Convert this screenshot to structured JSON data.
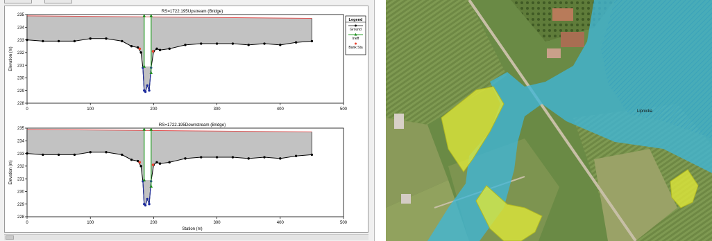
{
  "colors": {
    "ground_fill": "#c2c2c2",
    "ground_line": "#000000",
    "ground_marker": "#000000",
    "ineff_line": "#2ea12e",
    "ineff_marker": "#1a8a1a",
    "bank_marker": "#e8412c",
    "wse_line": "#e05050",
    "channel_line": "#1b2a9c",
    "map_flood": "#3fb6d9",
    "map_hazard": "#dde63a",
    "map_fields": "#6f8a47"
  },
  "legend": {
    "title": "Legend",
    "items": [
      {
        "label": "Ground",
        "symbol": "circle-line",
        "color": "#000000"
      },
      {
        "label": "Ineff",
        "symbol": "triangle-line",
        "color": "#2ea12e"
      },
      {
        "label": "Bank Sta",
        "symbol": "dot",
        "color": "#e8412c"
      }
    ]
  },
  "map": {
    "label": "Lipnicka"
  },
  "chart_data": [
    {
      "type": "area",
      "title": "RS=1722.195Upstream  (Bridge)",
      "xlabel": "",
      "ylabel": "Elevation (m)",
      "xlim": [
        0,
        500
      ],
      "ylim": [
        228,
        235
      ],
      "xticks": [
        0,
        100,
        200,
        300,
        400,
        500
      ],
      "yticks": [
        228,
        229,
        230,
        231,
        232,
        233,
        234,
        235
      ],
      "water_surface": {
        "x": [
          0,
          450
        ],
        "y": [
          234.9,
          234.7
        ]
      },
      "ground": {
        "x": [
          0,
          25,
          50,
          75,
          100,
          125,
          150,
          165,
          175,
          180,
          183,
          185,
          187,
          190,
          193,
          196,
          200,
          205,
          210,
          225,
          250,
          275,
          300,
          325,
          350,
          375,
          400,
          425,
          450
        ],
        "y": [
          233.0,
          232.9,
          232.9,
          232.9,
          233.1,
          233.1,
          232.9,
          232.5,
          232.4,
          232.0,
          230.8,
          229.0,
          228.9,
          229.4,
          229.0,
          230.8,
          232.1,
          232.3,
          232.2,
          232.3,
          232.6,
          232.7,
          232.7,
          232.7,
          232.6,
          232.7,
          232.6,
          232.8,
          232.9
        ]
      },
      "bank_stations": [
        {
          "x": 178,
          "y": 232.3
        },
        {
          "x": 199,
          "y": 232.1
        }
      ],
      "ineffective": [
        {
          "x": [
            185,
            185
          ],
          "y": [
            234.9,
            230.9
          ]
        },
        {
          "x": [
            196,
            196
          ],
          "y": [
            234.9,
            230.4
          ]
        }
      ]
    },
    {
      "type": "area",
      "title": "RS=1722.195Downstream  (Bridge)",
      "xlabel": "Station (m)",
      "ylabel": "Elevation (m)",
      "xlim": [
        0,
        500
      ],
      "ylim": [
        228,
        235
      ],
      "xticks": [
        0,
        100,
        200,
        300,
        400,
        500
      ],
      "yticks": [
        228,
        229,
        230,
        231,
        232,
        233,
        234,
        235
      ],
      "water_surface": {
        "x": [
          0,
          450
        ],
        "y": [
          234.9,
          234.7
        ]
      },
      "ground": {
        "x": [
          0,
          25,
          50,
          75,
          100,
          125,
          150,
          165,
          175,
          180,
          183,
          185,
          187,
          190,
          193,
          196,
          200,
          205,
          210,
          225,
          250,
          275,
          300,
          325,
          350,
          375,
          400,
          425,
          450
        ],
        "y": [
          233.0,
          232.9,
          232.9,
          232.9,
          233.1,
          233.1,
          232.9,
          232.5,
          232.4,
          232.0,
          230.8,
          229.0,
          228.9,
          229.4,
          229.0,
          230.8,
          232.1,
          232.3,
          232.2,
          232.3,
          232.6,
          232.7,
          232.7,
          232.7,
          232.6,
          232.7,
          232.6,
          232.8,
          232.9
        ]
      },
      "bank_stations": [
        {
          "x": 178,
          "y": 232.3
        },
        {
          "x": 199,
          "y": 232.1
        }
      ],
      "ineffective": [
        {
          "x": [
            185,
            185
          ],
          "y": [
            234.9,
            230.9
          ]
        },
        {
          "x": [
            196,
            196
          ],
          "y": [
            234.9,
            230.4
          ]
        }
      ]
    }
  ]
}
